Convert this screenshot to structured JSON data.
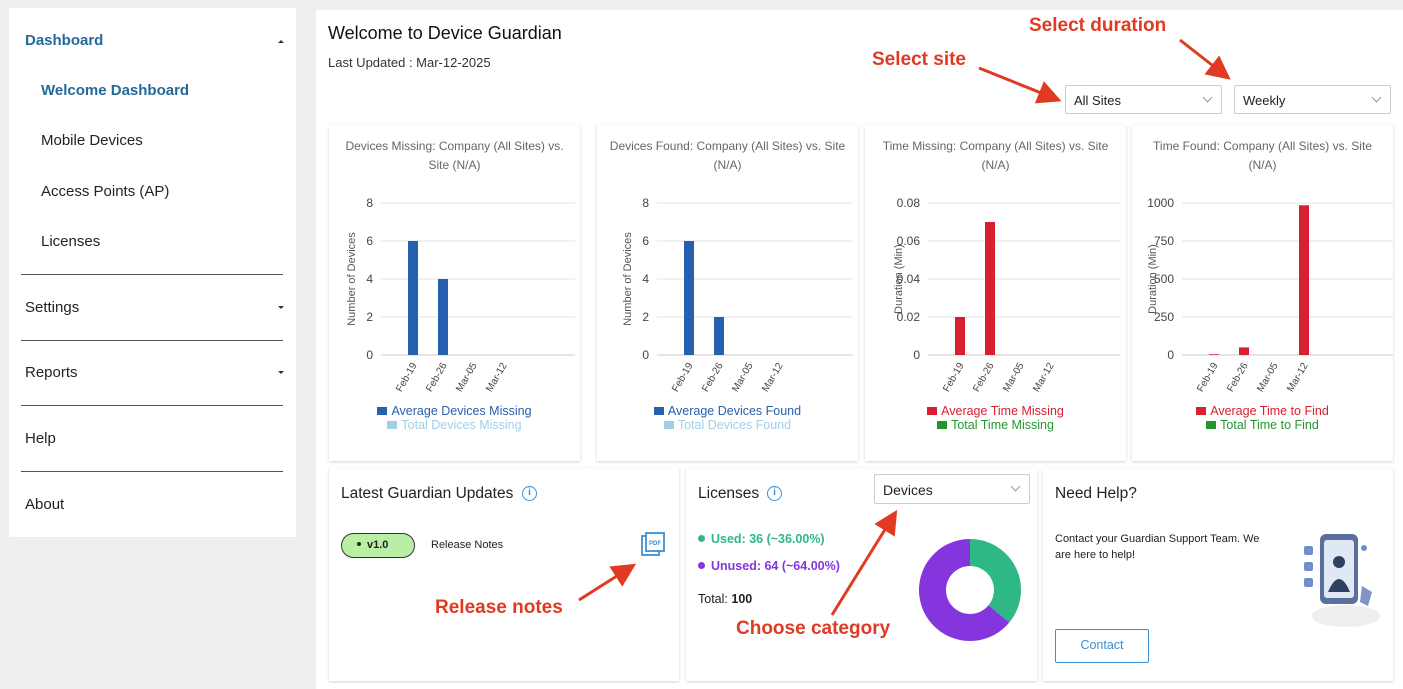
{
  "sidebar": {
    "dashboard": "Dashboard",
    "items": [
      "Welcome Dashboard",
      "Mobile Devices",
      "Access Points (AP)",
      "Licenses"
    ],
    "settings": "Settings",
    "reports": "Reports",
    "help": "Help",
    "about": "About"
  },
  "header": {
    "title": "Welcome to Device Guardian",
    "last_updated": "Last Updated : Mar-12-2025"
  },
  "filters": {
    "site": "All Sites",
    "duration": "Weekly"
  },
  "annotations": {
    "select_site": "Select site",
    "select_duration": "Select duration",
    "release_notes": "Release notes",
    "choose_category": "Choose category"
  },
  "colors": {
    "accent": "#236999",
    "blue_bar": "#2660ae",
    "light_blue": "#a3cfe6",
    "red_bar": "#d92030",
    "green": "#24962e",
    "used": "#2db886",
    "unused": "#8535dd"
  },
  "chart_data": [
    {
      "type": "bar",
      "title": "Devices Missing: Company (All Sites) vs. Site (N/A)",
      "ylabel": "Number of Devices",
      "categories": [
        "Feb-19",
        "Feb-26",
        "Mar-05",
        "Mar-12"
      ],
      "yticks": [
        "0",
        "2",
        "4",
        "6",
        "8"
      ],
      "ylim": [
        0,
        8
      ],
      "series": [
        {
          "name": "Average Devices Missing",
          "values": [
            6,
            4,
            0,
            0
          ]
        },
        {
          "name": "Total Devices Missing",
          "values": [
            0,
            0,
            0,
            0
          ]
        }
      ]
    },
    {
      "type": "bar",
      "title": "Devices Found: Company (All Sites) vs. Site (N/A)",
      "ylabel": "Number of Devices",
      "categories": [
        "Feb-19",
        "Feb-26",
        "Mar-05",
        "Mar-12"
      ],
      "yticks": [
        "0",
        "2",
        "4",
        "6",
        "8"
      ],
      "ylim": [
        0,
        8
      ],
      "series": [
        {
          "name": "Average Devices Found",
          "values": [
            6,
            2,
            0,
            0
          ]
        },
        {
          "name": "Total Devices Found",
          "values": [
            0,
            0,
            0,
            0
          ]
        }
      ]
    },
    {
      "type": "bar",
      "title": "Time Missing: Company (All Sites) vs. Site (N/A)",
      "ylabel": "Duration (Min)",
      "categories": [
        "Feb-19",
        "Feb-26",
        "Mar-05",
        "Mar-12"
      ],
      "yticks": [
        "0",
        "0.02",
        "0.04",
        "0.06",
        "0.08"
      ],
      "ylim": [
        0,
        0.08
      ],
      "series": [
        {
          "name": "Average Time Missing",
          "values": [
            0.02,
            0.07,
            0,
            0
          ]
        },
        {
          "name": "Total Time Missing",
          "values": [
            0,
            0,
            0,
            0
          ]
        }
      ]
    },
    {
      "type": "bar",
      "title": "Time Found: Company (All Sites) vs. Site (N/A)",
      "ylabel": "Duration (Min)",
      "categories": [
        "Feb-19",
        "Feb-26",
        "Mar-05",
        "Mar-12"
      ],
      "yticks": [
        "0",
        "250",
        "500",
        "750",
        "1000"
      ],
      "ylim": [
        0,
        1000
      ],
      "series": [
        {
          "name": "Average Time to Find",
          "values": [
            5,
            50,
            0,
            985
          ]
        },
        {
          "name": "Total Time to Find",
          "values": [
            0,
            0,
            0,
            0
          ]
        }
      ]
    },
    {
      "type": "pie",
      "categories": [
        "Used",
        "Unused"
      ],
      "values": [
        36,
        64
      ]
    }
  ],
  "updates": {
    "title": "Latest Guardian Updates",
    "version": "v1.0",
    "release_notes": "Release Notes",
    "pdf_icon": "PDF"
  },
  "licenses": {
    "title": "Licenses",
    "category": "Devices",
    "used_label": "Used: 36 (~36.00%)",
    "unused_label": "Unused: 64 (~64.00%)",
    "total_label": "Total:",
    "total_value": "100"
  },
  "help": {
    "title": "Need Help?",
    "text": "Contact your Guardian Support Team. We are here to help!",
    "button": "Contact"
  }
}
